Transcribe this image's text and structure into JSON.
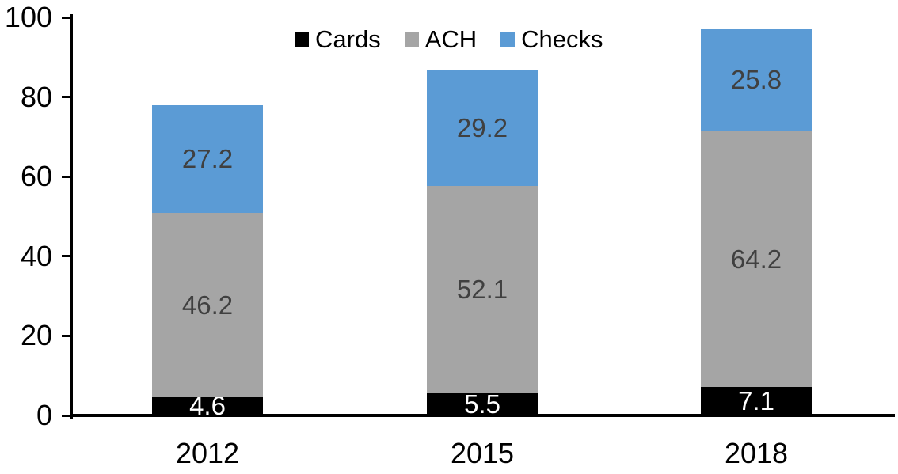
{
  "chart_data": {
    "type": "bar",
    "stacked": true,
    "title": "",
    "xlabel": "",
    "ylabel": "",
    "categories": [
      "2012",
      "2015",
      "2018"
    ],
    "series": [
      {
        "name": "Cards",
        "values": [
          4.6,
          5.5,
          7.1
        ],
        "labels": [
          "4.6",
          "5.5",
          "7.1"
        ],
        "color": "#000000",
        "label_color": "#ffffff"
      },
      {
        "name": "ACH",
        "values": [
          46.2,
          52.1,
          64.2
        ],
        "labels": [
          "46.2",
          "52.1",
          "64.2"
        ],
        "color": "#a5a5a5",
        "label_color": "#404040"
      },
      {
        "name": "Checks",
        "values": [
          27.2,
          29.2,
          25.8
        ],
        "labels": [
          "27.2",
          "29.2",
          "25.8"
        ],
        "color": "#5b9bd5",
        "label_color": "#404040"
      }
    ],
    "ylim": [
      0,
      100
    ],
    "yticks": [
      "0",
      "20",
      "40",
      "60",
      "80",
      "100"
    ],
    "legend_position": "top-center",
    "grid": false,
    "axis_color": "#000000",
    "background_color": "#ffffff"
  }
}
